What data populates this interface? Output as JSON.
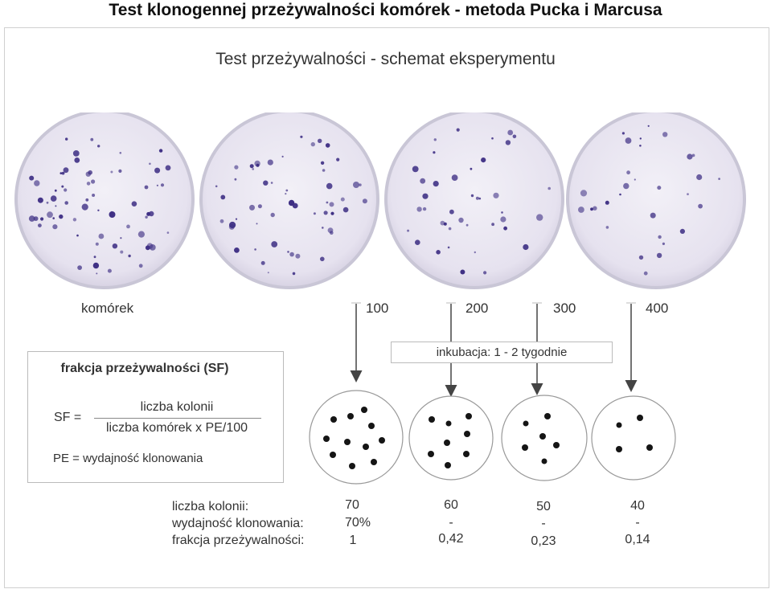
{
  "main_title": "Test klonogennej przeżywalności komórek - metoda Pucka i Marcusa",
  "subtitle": "Test przeżywalności - schemat eksperymentu",
  "cells_label": "komórek",
  "seeded_counts": [
    "100",
    "200",
    "300",
    "400"
  ],
  "incubation": "inkubacja: 1 - 2 tygodnie",
  "sf_box": {
    "heading": "frakcja przeżywalności (SF)",
    "sf_label": "SF =",
    "numerator": "liczba kolonii",
    "denominator": "liczba komórek x PE/100",
    "pe_definition": "PE = wydajność klonowania"
  },
  "results": {
    "row_labels": [
      "liczba kolonii:",
      "wydajność klonowania:",
      "frakcja przeżywalności:"
    ],
    "columns": [
      {
        "colonies": "70",
        "pe": "70%",
        "sf": "1"
      },
      {
        "colonies": "60",
        "pe": "-",
        "sf": "0,42"
      },
      {
        "colonies": "50",
        "pe": "-",
        "sf": "0,23"
      },
      {
        "colonies": "40",
        "pe": "-",
        "sf": "0,14"
      }
    ]
  },
  "colors": {
    "plate_fill": "#e9e6f2",
    "plate_rim": "#c9c6d6",
    "colony": "#3e2f84",
    "schematic_colony": "#151515"
  }
}
